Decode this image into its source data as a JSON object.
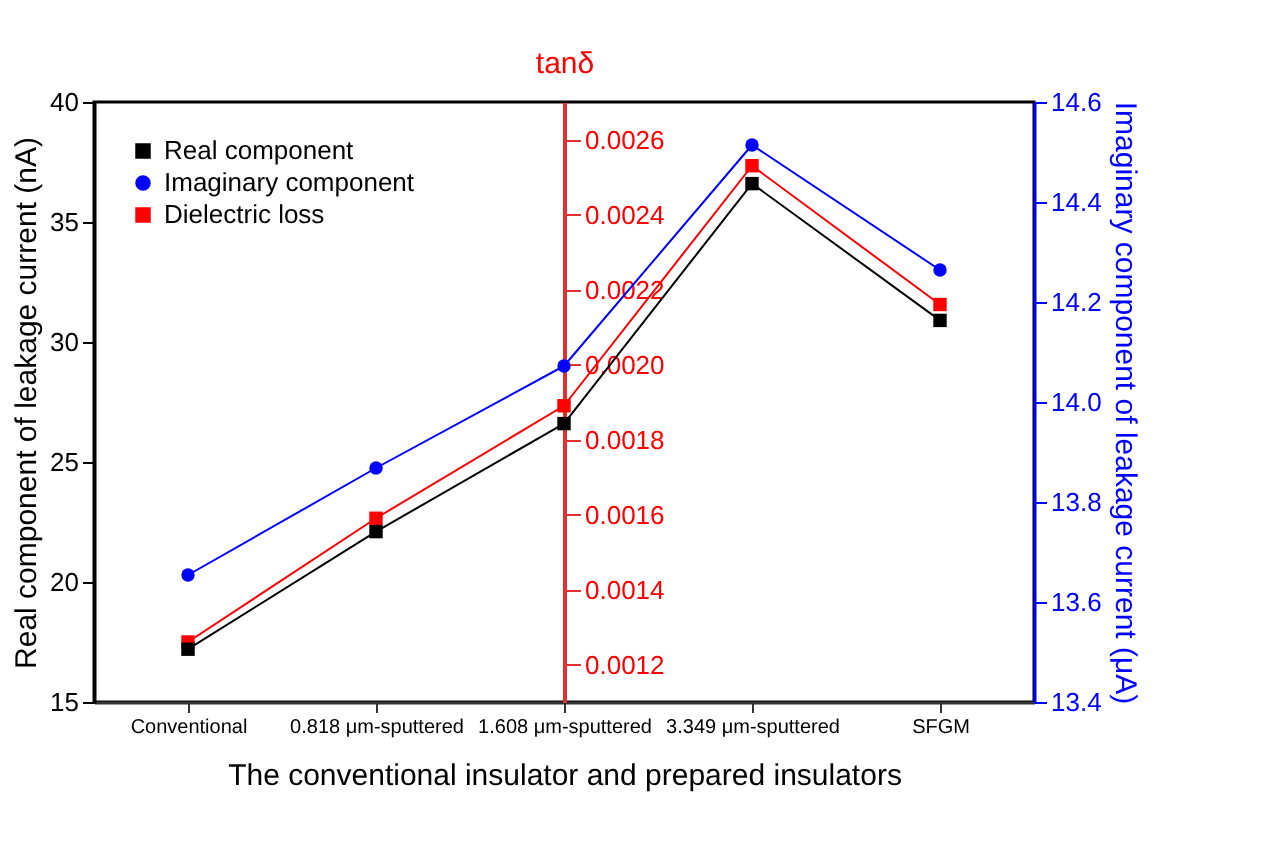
{
  "chart_data": {
    "type": "line",
    "xlabel": "The conventional insulator and prepared insulators",
    "ylabel": "Real component of leakage current (nA)",
    "y2label": "Imaginary component of leakage current (μA)",
    "y3label": "tanδ",
    "categories": [
      "Conventional",
      "0.818 μm-sputtered",
      "1.608 μm-sputtered",
      "3.349 μm-sputtered",
      "SFGM"
    ],
    "series": [
      {
        "name": "Real component",
        "color": "#000000",
        "marker": "square",
        "axis": "y",
        "values": [
          17.2,
          22.1,
          26.6,
          36.6,
          30.9
        ]
      },
      {
        "name": "Imaginary component",
        "color": "#0000ff",
        "marker": "circle",
        "axis": "y2",
        "values": [
          13.654,
          13.868,
          14.072,
          14.514,
          14.264
        ]
      },
      {
        "name": "Dielectric loss",
        "color": "#ff0000",
        "marker": "square",
        "axis": "y3",
        "values": [
          0.00126,
          0.00159,
          0.00189,
          0.00253,
          0.00216
        ]
      }
    ],
    "ylim": [
      15,
      40
    ],
    "yticks": [
      15,
      20,
      25,
      30,
      35,
      40
    ],
    "y2lim": [
      13.4,
      14.6
    ],
    "y2ticks": [
      13.4,
      13.6,
      13.8,
      {
        "value": 14,
        "label": "14.0"
      },
      14.2,
      14.4,
      14.6
    ],
    "y3lim": [
      0.0011,
      0.0027
    ],
    "y3ticks": [
      {
        "value": 0.0012,
        "label": "0.0012"
      },
      {
        "value": 0.0014,
        "label": "0.0014"
      },
      {
        "value": 0.0016,
        "label": "0.0016"
      },
      {
        "value": 0.0018,
        "label": "0.0018"
      },
      {
        "value": 0.002,
        "label": "0.0020"
      },
      {
        "value": 0.0022,
        "label": "0.0022"
      },
      {
        "value": 0.0024,
        "label": "0.0024"
      },
      {
        "value": 0.0026,
        "label": "0.0026"
      }
    ],
    "grid": false,
    "legend": "top left",
    "line_style": "solid"
  }
}
